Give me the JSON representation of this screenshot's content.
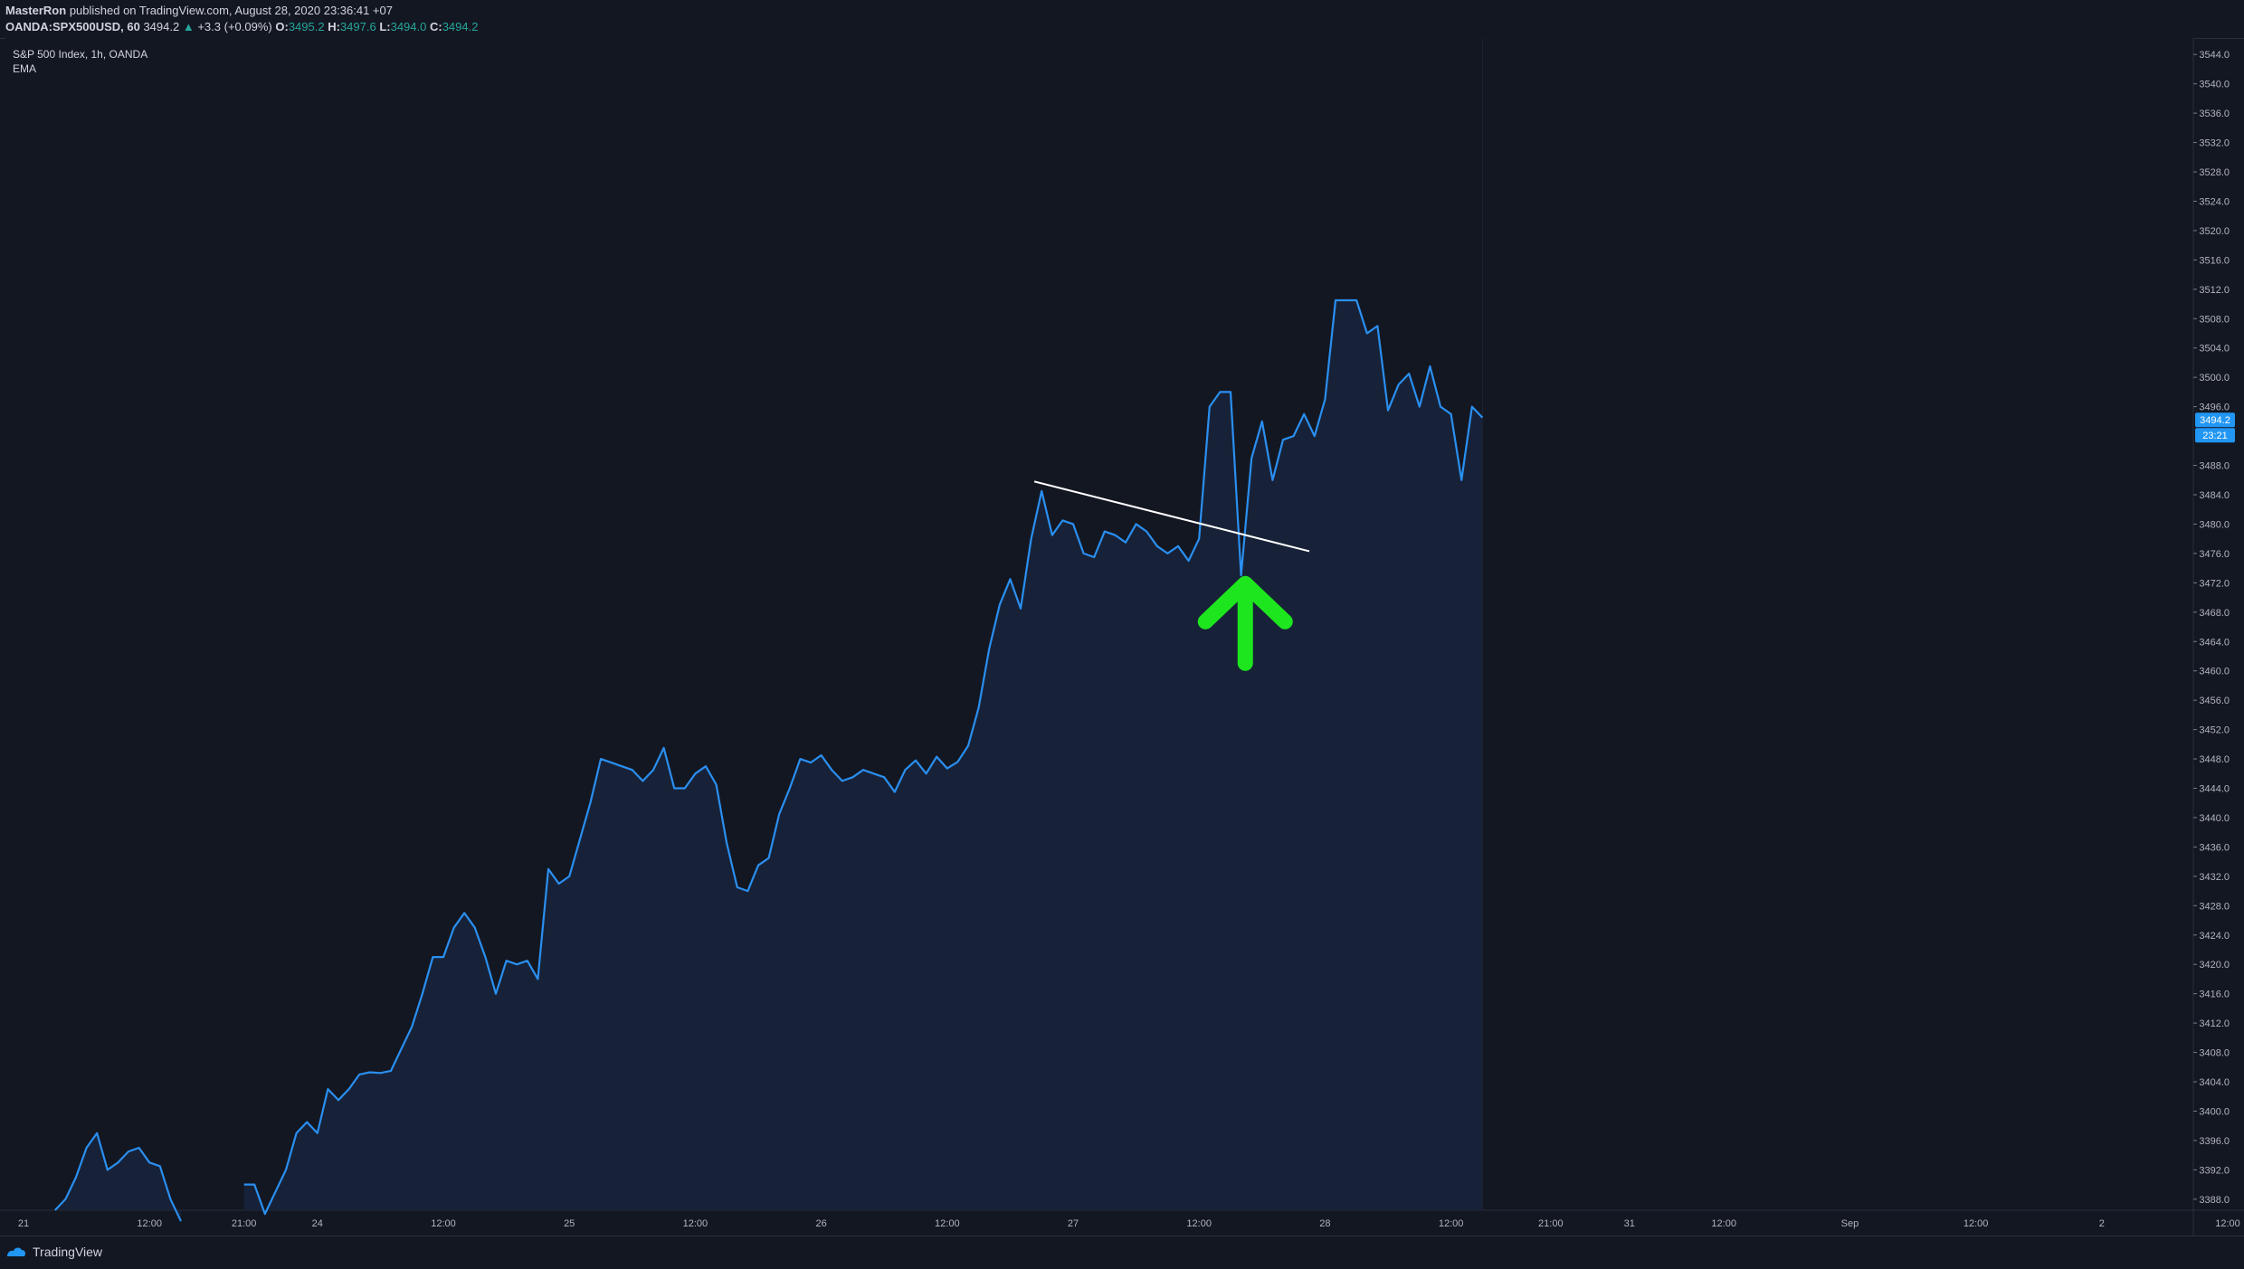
{
  "header": {
    "author": "MasterRon",
    "published_text": "published on TradingView.com, August 28, 2020 23:36:41 +07",
    "symbol": "OANDA:SPX500USD, 60",
    "last_price": "3494.2",
    "change_arrow": "▲",
    "change": "+3.3 (+0.09%)",
    "o_label": "O:",
    "o_value": "3495.2",
    "h_label": "H:",
    "h_value": "3497.6",
    "l_label": "L:",
    "l_value": "3494.0",
    "c_label": "C:",
    "c_value": "3494.2"
  },
  "legend": {
    "title": "S&P 500 Index, 1h, OANDA",
    "indicator": "EMA"
  },
  "price_badge": {
    "price": "3494.2",
    "countdown": "23:21"
  },
  "footer": {
    "brand": "TradingView"
  },
  "colors": {
    "background": "#131722",
    "line": "#2a8ff0",
    "area_fill": "#172238",
    "trendline": "#ffffff",
    "arrow": "#1ee61e",
    "badge": "#2196f3"
  },
  "icons": {
    "arrow": "up-arrow-icon",
    "logo": "tradingview-logo-icon"
  },
  "chart_data": {
    "type": "area",
    "ylim": [
      3386.5,
      3546.0
    ],
    "y_ticks": [
      "3544.0",
      "3540.0",
      "3536.0",
      "3532.0",
      "3528.0",
      "3524.0",
      "3520.0",
      "3516.0",
      "3512.0",
      "3508.0",
      "3504.0",
      "3500.0",
      "3496.0",
      "3488.0",
      "3484.0",
      "3480.0",
      "3476.0",
      "3472.0",
      "3468.0",
      "3464.0",
      "3460.0",
      "3456.0",
      "3452.0",
      "3448.0",
      "3444.0",
      "3440.0",
      "3436.0",
      "3432.0",
      "3428.0",
      "3424.0",
      "3420.0",
      "3416.0",
      "3412.0",
      "3408.0",
      "3404.0",
      "3400.0",
      "3396.0",
      "3392.0",
      "3388.0"
    ],
    "x_ticks": [
      {
        "label": "21",
        "hour": 0
      },
      {
        "label": "12:00",
        "hour": 12
      },
      {
        "label": "21:00",
        "hour": 21
      },
      {
        "label": "24",
        "hour": 28
      },
      {
        "label": "12:00",
        "hour": 40
      },
      {
        "label": "25",
        "hour": 52
      },
      {
        "label": "12:00",
        "hour": 64
      },
      {
        "label": "26",
        "hour": 76
      },
      {
        "label": "12:00",
        "hour": 88
      },
      {
        "label": "27",
        "hour": 100
      },
      {
        "label": "12:00",
        "hour": 112
      },
      {
        "label": "28",
        "hour": 124
      },
      {
        "label": "12:00",
        "hour": 136
      },
      {
        "label": "21:00",
        "hour": 145.5
      },
      {
        "label": "31",
        "hour": 153
      },
      {
        "label": "12:00",
        "hour": 162
      },
      {
        "label": "Sep",
        "hour": 174
      },
      {
        "label": "12:00",
        "hour": 186
      },
      {
        "label": "2",
        "hour": 198
      },
      {
        "label": "12:00",
        "hour": 210
      }
    ],
    "series": [
      {
        "values": [
          [
            3,
            3386.5
          ],
          [
            4,
            3388
          ],
          [
            5,
            3391
          ],
          [
            6,
            3395
          ],
          [
            7,
            3397
          ],
          [
            8,
            3392
          ],
          [
            9,
            3393
          ],
          [
            10,
            3394.5
          ],
          [
            11,
            3395
          ],
          [
            12,
            3393
          ],
          [
            13,
            3392.5
          ],
          [
            14,
            3388
          ],
          [
            15,
            3385
          ],
          [
            21,
            3390
          ],
          [
            22,
            3390
          ],
          [
            23,
            3386
          ],
          [
            24,
            3389
          ],
          [
            25,
            3392
          ],
          [
            26,
            3397
          ],
          [
            27,
            3398.5
          ],
          [
            28,
            3397
          ],
          [
            29,
            3403
          ],
          [
            30,
            3401.5
          ],
          [
            31,
            3403
          ],
          [
            32,
            3405
          ],
          [
            33,
            3405.3
          ],
          [
            34,
            3405.2
          ],
          [
            35,
            3405.5
          ],
          [
            36,
            3408.5
          ],
          [
            37,
            3411.5
          ],
          [
            38,
            3416
          ],
          [
            39,
            3421
          ],
          [
            40,
            3421
          ],
          [
            41,
            3425
          ],
          [
            42,
            3427
          ],
          [
            43,
            3425
          ],
          [
            44,
            3421
          ],
          [
            45,
            3416
          ],
          [
            46,
            3420.5
          ],
          [
            47,
            3420
          ],
          [
            48,
            3420.5
          ],
          [
            49,
            3418
          ],
          [
            50,
            3433
          ],
          [
            51,
            3431
          ],
          [
            52,
            3432
          ],
          [
            53,
            3437
          ],
          [
            54,
            3442
          ],
          [
            55,
            3448
          ],
          [
            56,
            3447.5
          ],
          [
            57,
            3447
          ],
          [
            58,
            3446.5
          ],
          [
            59,
            3445
          ],
          [
            60,
            3446.5
          ],
          [
            61,
            3449.5
          ],
          [
            62,
            3444
          ],
          [
            63,
            3444
          ],
          [
            64,
            3446
          ],
          [
            65,
            3447
          ],
          [
            66,
            3444.5
          ],
          [
            67,
            3436.5
          ],
          [
            68,
            3430.5
          ],
          [
            69,
            3430
          ],
          [
            70,
            3433.5
          ],
          [
            71,
            3434.5
          ],
          [
            72,
            3440.5
          ],
          [
            73,
            3444
          ],
          [
            74,
            3448
          ],
          [
            75,
            3447.5
          ],
          [
            76,
            3448.5
          ],
          [
            77,
            3446.5
          ],
          [
            78,
            3445
          ],
          [
            79,
            3445.5
          ],
          [
            80,
            3446.5
          ],
          [
            81,
            3446
          ],
          [
            82,
            3445.5
          ],
          [
            83,
            3443.5
          ],
          [
            84,
            3446.5
          ],
          [
            85,
            3447.8
          ],
          [
            86,
            3446
          ],
          [
            87,
            3448.3
          ],
          [
            88,
            3446.7
          ],
          [
            89,
            3447.6
          ],
          [
            90,
            3449.8
          ],
          [
            91,
            3455
          ],
          [
            92,
            3463
          ],
          [
            93,
            3469
          ],
          [
            94,
            3472.5
          ],
          [
            95,
            3468.5
          ],
          [
            96,
            3478
          ],
          [
            97,
            3484.5
          ],
          [
            98,
            3478.5
          ],
          [
            99,
            3480.5
          ],
          [
            100,
            3480
          ],
          [
            101,
            3476
          ],
          [
            102,
            3475.5
          ],
          [
            103,
            3479
          ],
          [
            104,
            3478.5
          ],
          [
            105,
            3477.5
          ],
          [
            106,
            3480
          ],
          [
            107,
            3479
          ],
          [
            108,
            3477
          ],
          [
            109,
            3476
          ],
          [
            110,
            3477
          ],
          [
            111,
            3475
          ],
          [
            112,
            3478
          ],
          [
            113,
            3496
          ],
          [
            114,
            3498
          ],
          [
            115,
            3498
          ],
          [
            116,
            3473
          ],
          [
            117,
            3489
          ],
          [
            118,
            3494
          ],
          [
            119,
            3486
          ],
          [
            120,
            3491.5
          ],
          [
            121,
            3492
          ],
          [
            122,
            3495
          ],
          [
            123,
            3492
          ],
          [
            124,
            3497
          ],
          [
            125,
            3510.5
          ],
          [
            126,
            3510.5
          ],
          [
            127,
            3510.5
          ],
          [
            128,
            3506
          ],
          [
            129,
            3507
          ],
          [
            130,
            3495.5
          ],
          [
            131,
            3499
          ],
          [
            132,
            3500.5
          ],
          [
            133,
            3496
          ],
          [
            134,
            3501.5
          ],
          [
            135,
            3496
          ],
          [
            136,
            3495
          ],
          [
            137,
            3486
          ],
          [
            138,
            3496
          ],
          [
            139,
            3494.5
          ]
        ]
      }
    ],
    "trendline": {
      "start": [
        96.3,
        3485.8
      ],
      "end": [
        122.5,
        3476.3
      ]
    },
    "annotation": {
      "type": "up-arrow",
      "hour": 116.4,
      "price": 3472.5
    },
    "grid": false,
    "price_scale": "right"
  }
}
